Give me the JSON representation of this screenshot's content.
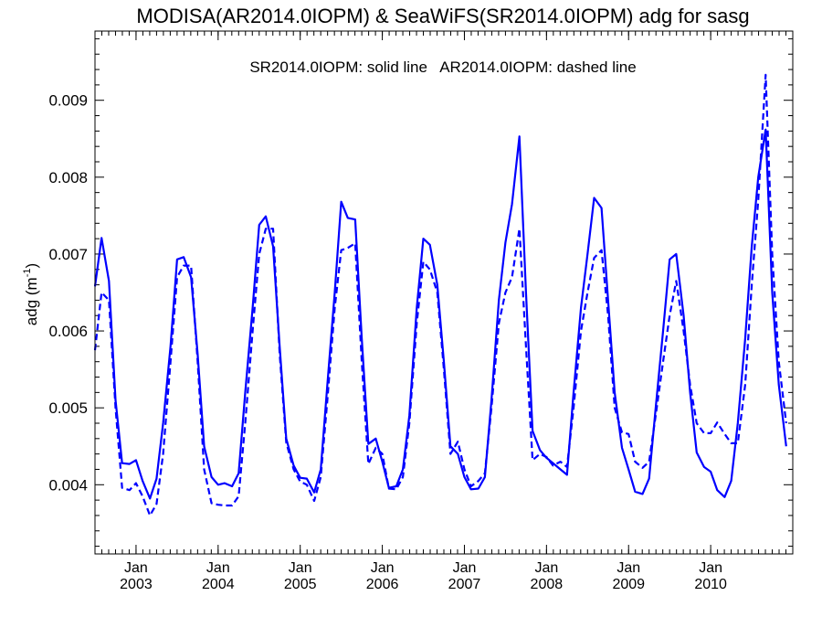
{
  "chart_data": {
    "type": "line",
    "title": "MODISA(AR2014.0IOPM) & SeaWiFS(SR2014.0IOPM)  adg for sasg",
    "annotation": "SR2014.0IOPM: solid line   AR2014.0IOPM: dashed line",
    "ylabel_main": "adg (m",
    "ylabel_sup": "-1",
    "ylabel_close": ")",
    "xlabel": "",
    "xlim": [
      2002.5,
      2011.0
    ],
    "ylim": [
      0.0031,
      0.0099
    ],
    "yticks": [
      {
        "value": 0.004,
        "label": "0.004"
      },
      {
        "value": 0.005,
        "label": "0.005"
      },
      {
        "value": 0.006,
        "label": "0.006"
      },
      {
        "value": 0.007,
        "label": "0.007"
      },
      {
        "value": 0.008,
        "label": "0.008"
      },
      {
        "value": 0.009,
        "label": "0.009"
      }
    ],
    "xticks": [
      {
        "value": 2003.0,
        "month": "Jan",
        "year": "2003"
      },
      {
        "value": 2004.0,
        "month": "Jan",
        "year": "2004"
      },
      {
        "value": 2005.0,
        "month": "Jan",
        "year": "2005"
      },
      {
        "value": 2006.0,
        "month": "Jan",
        "year": "2006"
      },
      {
        "value": 2007.0,
        "month": "Jan",
        "year": "2007"
      },
      {
        "value": 2008.0,
        "month": "Jan",
        "year": "2008"
      },
      {
        "value": 2009.0,
        "month": "Jan",
        "year": "2009"
      },
      {
        "value": 2010.0,
        "month": "Jan",
        "year": "2010"
      }
    ],
    "series": [
      {
        "style": "solid",
        "color": "#0000ff",
        "points": [
          [
            2002.5,
            0.00658
          ],
          [
            2002.58,
            0.00721
          ],
          [
            2002.67,
            0.00665
          ],
          [
            2002.75,
            0.0051
          ],
          [
            2002.83,
            0.00428
          ],
          [
            2002.92,
            0.00427
          ],
          [
            2003.0,
            0.00432
          ],
          [
            2003.08,
            0.00405
          ],
          [
            2003.17,
            0.00382
          ],
          [
            2003.25,
            0.00408
          ],
          [
            2003.33,
            0.0048
          ],
          [
            2003.42,
            0.0058
          ],
          [
            2003.5,
            0.00693
          ],
          [
            2003.58,
            0.00696
          ],
          [
            2003.67,
            0.0067
          ],
          [
            2003.75,
            0.0057
          ],
          [
            2003.83,
            0.0045
          ],
          [
            2003.92,
            0.0041
          ],
          [
            2004.0,
            0.004
          ],
          [
            2004.08,
            0.00402
          ],
          [
            2004.17,
            0.00398
          ],
          [
            2004.25,
            0.00415
          ],
          [
            2004.33,
            0.0052
          ],
          [
            2004.42,
            0.0063
          ],
          [
            2004.5,
            0.00738
          ],
          [
            2004.58,
            0.00749
          ],
          [
            2004.67,
            0.0071
          ],
          [
            2004.75,
            0.0058
          ],
          [
            2004.83,
            0.0046
          ],
          [
            2004.92,
            0.00425
          ],
          [
            2005.0,
            0.00409
          ],
          [
            2005.08,
            0.00408
          ],
          [
            2005.17,
            0.0039
          ],
          [
            2005.25,
            0.0042
          ],
          [
            2005.33,
            0.0053
          ],
          [
            2005.42,
            0.0065
          ],
          [
            2005.5,
            0.00768
          ],
          [
            2005.58,
            0.00747
          ],
          [
            2005.67,
            0.00745
          ],
          [
            2005.75,
            0.0059
          ],
          [
            2005.83,
            0.00453
          ],
          [
            2005.92,
            0.0046
          ],
          [
            2006.0,
            0.0043
          ],
          [
            2006.08,
            0.00396
          ],
          [
            2006.17,
            0.00398
          ],
          [
            2006.25,
            0.0042
          ],
          [
            2006.33,
            0.0049
          ],
          [
            2006.42,
            0.0063
          ],
          [
            2006.5,
            0.0072
          ],
          [
            2006.58,
            0.00712
          ],
          [
            2006.67,
            0.0066
          ],
          [
            2006.75,
            0.0056
          ],
          [
            2006.83,
            0.0045
          ],
          [
            2006.92,
            0.0044
          ],
          [
            2007.0,
            0.0041
          ],
          [
            2007.08,
            0.00394
          ],
          [
            2007.17,
            0.00395
          ],
          [
            2007.25,
            0.0041
          ],
          [
            2007.33,
            0.0051
          ],
          [
            2007.42,
            0.0064
          ],
          [
            2007.5,
            0.00715
          ],
          [
            2007.58,
            0.00765
          ],
          [
            2007.67,
            0.00853
          ],
          [
            2007.75,
            0.0065
          ],
          [
            2007.83,
            0.0047
          ],
          [
            2007.92,
            0.00445
          ],
          [
            2008.0,
            0.00435
          ],
          [
            2008.08,
            0.00428
          ],
          [
            2008.17,
            0.0042
          ],
          [
            2008.25,
            0.00413
          ],
          [
            2008.33,
            0.0052
          ],
          [
            2008.42,
            0.0063
          ],
          [
            2008.5,
            0.007
          ],
          [
            2008.58,
            0.00773
          ],
          [
            2008.67,
            0.0076
          ],
          [
            2008.75,
            0.0064
          ],
          [
            2008.83,
            0.0052
          ],
          [
            2008.92,
            0.00448
          ],
          [
            2009.0,
            0.0042
          ],
          [
            2009.08,
            0.00391
          ],
          [
            2009.17,
            0.00388
          ],
          [
            2009.25,
            0.00408
          ],
          [
            2009.33,
            0.005
          ],
          [
            2009.42,
            0.006
          ],
          [
            2009.5,
            0.00693
          ],
          [
            2009.58,
            0.007
          ],
          [
            2009.67,
            0.0062
          ],
          [
            2009.75,
            0.0052
          ],
          [
            2009.83,
            0.00442
          ],
          [
            2009.92,
            0.00423
          ],
          [
            2010.0,
            0.00417
          ],
          [
            2010.08,
            0.00393
          ],
          [
            2010.17,
            0.00384
          ],
          [
            2010.25,
            0.00405
          ],
          [
            2010.33,
            0.0048
          ],
          [
            2010.42,
            0.0059
          ],
          [
            2010.5,
            0.0071
          ],
          [
            2010.58,
            0.008
          ],
          [
            2010.67,
            0.00862
          ],
          [
            2010.75,
            0.0065
          ],
          [
            2010.83,
            0.0053
          ],
          [
            2010.92,
            0.0045
          ]
        ]
      },
      {
        "style": "dashed",
        "color": "#0000ff",
        "points": [
          [
            2002.5,
            0.00575
          ],
          [
            2002.58,
            0.0065
          ],
          [
            2002.67,
            0.0064
          ],
          [
            2002.75,
            0.005
          ],
          [
            2002.83,
            0.00396
          ],
          [
            2002.92,
            0.00393
          ],
          [
            2003.0,
            0.00402
          ],
          [
            2003.08,
            0.00385
          ],
          [
            2003.17,
            0.0036
          ],
          [
            2003.25,
            0.00375
          ],
          [
            2003.33,
            0.0044
          ],
          [
            2003.42,
            0.0056
          ],
          [
            2003.5,
            0.0067
          ],
          [
            2003.58,
            0.00685
          ],
          [
            2003.67,
            0.00685
          ],
          [
            2003.75,
            0.0056
          ],
          [
            2003.83,
            0.0042
          ],
          [
            2003.92,
            0.00376
          ],
          [
            2004.0,
            0.00374
          ],
          [
            2004.08,
            0.00373
          ],
          [
            2004.17,
            0.00373
          ],
          [
            2004.25,
            0.00385
          ],
          [
            2004.33,
            0.0048
          ],
          [
            2004.42,
            0.006
          ],
          [
            2004.5,
            0.007
          ],
          [
            2004.58,
            0.00733
          ],
          [
            2004.67,
            0.00733
          ],
          [
            2004.75,
            0.0057
          ],
          [
            2004.83,
            0.00455
          ],
          [
            2004.92,
            0.0042
          ],
          [
            2005.0,
            0.00404
          ],
          [
            2005.08,
            0.004
          ],
          [
            2005.17,
            0.00379
          ],
          [
            2005.25,
            0.0041
          ],
          [
            2005.33,
            0.0051
          ],
          [
            2005.42,
            0.0063
          ],
          [
            2005.5,
            0.00705
          ],
          [
            2005.58,
            0.00708
          ],
          [
            2005.67,
            0.00714
          ],
          [
            2005.75,
            0.0056
          ],
          [
            2005.83,
            0.00427
          ],
          [
            2005.92,
            0.00448
          ],
          [
            2006.0,
            0.0044
          ],
          [
            2006.08,
            0.00395
          ],
          [
            2006.17,
            0.00394
          ],
          [
            2006.25,
            0.0041
          ],
          [
            2006.33,
            0.0048
          ],
          [
            2006.42,
            0.0061
          ],
          [
            2006.5,
            0.0069
          ],
          [
            2006.58,
            0.0068
          ],
          [
            2006.67,
            0.0065
          ],
          [
            2006.75,
            0.0055
          ],
          [
            2006.83,
            0.0044
          ],
          [
            2006.92,
            0.00456
          ],
          [
            2007.0,
            0.0042
          ],
          [
            2007.08,
            0.00398
          ],
          [
            2007.17,
            0.00405
          ],
          [
            2007.25,
            0.00415
          ],
          [
            2007.33,
            0.005
          ],
          [
            2007.42,
            0.0061
          ],
          [
            2007.5,
            0.0065
          ],
          [
            2007.58,
            0.0067
          ],
          [
            2007.67,
            0.00733
          ],
          [
            2007.75,
            0.0058
          ],
          [
            2007.83,
            0.00432
          ],
          [
            2007.92,
            0.0044
          ],
          [
            2008.0,
            0.00436
          ],
          [
            2008.08,
            0.00425
          ],
          [
            2008.17,
            0.0043
          ],
          [
            2008.25,
            0.00423
          ],
          [
            2008.33,
            0.005
          ],
          [
            2008.42,
            0.006
          ],
          [
            2008.5,
            0.0065
          ],
          [
            2008.58,
            0.00695
          ],
          [
            2008.67,
            0.00705
          ],
          [
            2008.75,
            0.0062
          ],
          [
            2008.83,
            0.005
          ],
          [
            2008.92,
            0.00468
          ],
          [
            2009.0,
            0.00466
          ],
          [
            2009.08,
            0.0043
          ],
          [
            2009.17,
            0.00422
          ],
          [
            2009.25,
            0.0043
          ],
          [
            2009.33,
            0.0049
          ],
          [
            2009.42,
            0.0056
          ],
          [
            2009.5,
            0.0062
          ],
          [
            2009.58,
            0.00665
          ],
          [
            2009.67,
            0.006
          ],
          [
            2009.75,
            0.0053
          ],
          [
            2009.83,
            0.0048
          ],
          [
            2009.92,
            0.00467
          ],
          [
            2010.0,
            0.00467
          ],
          [
            2010.08,
            0.00481
          ],
          [
            2010.17,
            0.00466
          ],
          [
            2010.25,
            0.00454
          ],
          [
            2010.33,
            0.00454
          ],
          [
            2010.42,
            0.0053
          ],
          [
            2010.5,
            0.0066
          ],
          [
            2010.58,
            0.0077
          ],
          [
            2010.67,
            0.00933
          ],
          [
            2010.75,
            0.007
          ],
          [
            2010.83,
            0.0056
          ],
          [
            2010.92,
            0.0048
          ]
        ]
      }
    ]
  }
}
